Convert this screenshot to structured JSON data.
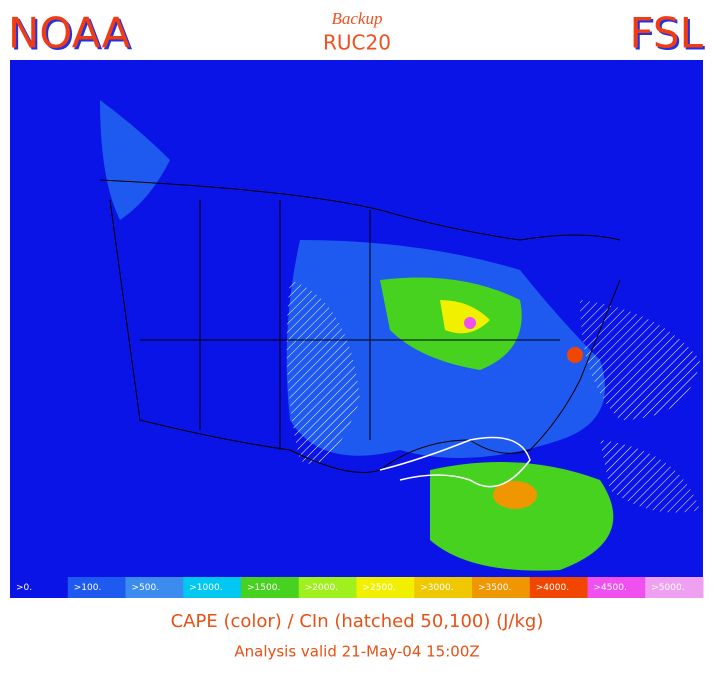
{
  "header": {
    "left": "NOAA",
    "right": "FSL",
    "subtitle_top": "Backup",
    "subtitle": "RUC20"
  },
  "legend": {
    "items": [
      {
        "label": ">0.",
        "color": "#0a14e6"
      },
      {
        "label": ">100.",
        "color": "#1e5af0"
      },
      {
        "label": ">500.",
        "color": "#3c8cf0"
      },
      {
        "label": ">1000.",
        "color": "#00c8f0"
      },
      {
        "label": ">1500.",
        "color": "#46d21e"
      },
      {
        "label": ">2000.",
        "color": "#a0f01e"
      },
      {
        "label": ">2500.",
        "color": "#f0f000"
      },
      {
        "label": ">3000.",
        "color": "#f0c800"
      },
      {
        "label": ">3500.",
        "color": "#f09600"
      },
      {
        "label": ">4000.",
        "color": "#f04600"
      },
      {
        "label": ">4500.",
        "color": "#f050f0"
      },
      {
        "label": ">5000.",
        "color": "#f0a0f0"
      }
    ]
  },
  "footer": {
    "title": "CAPE (color) / CIn (hatched 50,100)  (J/kg)",
    "valid": "Analysis valid 21-May-04 15:00Z"
  }
}
